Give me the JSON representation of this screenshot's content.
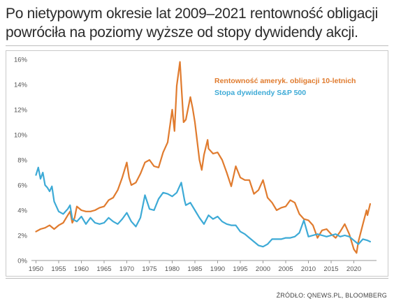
{
  "headline": "Po nietypowym okresie lat 2009–2021 rentowność obligacji powróciła na poziomy wyższe od stopy dywidendy akcji.",
  "source": "ŹRÓDŁO: QNEWS.PL, BLOOMBERG",
  "colors": {
    "bond": "#E07B2E",
    "dividend": "#3DAAD6"
  },
  "chart_data": {
    "type": "line",
    "title": "",
    "xlabel": "",
    "ylabel": "",
    "xlim": [
      1949,
      2025
    ],
    "ylim": [
      0,
      16
    ],
    "x_ticks": [
      "1950",
      "1955",
      "1960",
      "1965",
      "1970",
      "1975",
      "1980",
      "1985",
      "1990",
      "1995",
      "2000",
      "2005",
      "2010",
      "2015",
      "2020"
    ],
    "y_ticks": [
      "0%",
      "2%",
      "4%",
      "6%",
      "8%",
      "10%",
      "12%",
      "14%",
      "16%"
    ],
    "grid": false,
    "legend_position": "top-right",
    "series": [
      {
        "name": "Rentowność ameryk. obligacji 10-letnich",
        "color": "#E07B2E",
        "x": [
          1950,
          1951,
          1952,
          1953,
          1954,
          1955,
          1956,
          1957,
          1957.5,
          1958,
          1958.5,
          1959,
          1960,
          1961,
          1962,
          1963,
          1964,
          1965,
          1966,
          1967,
          1968,
          1969,
          1970,
          1970.5,
          1971,
          1972,
          1973,
          1974,
          1975,
          1976,
          1977,
          1978,
          1979,
          1980,
          1980.5,
          1981,
          1981.7,
          1982,
          1982.5,
          1983,
          1984,
          1984.5,
          1985,
          1986,
          1986.5,
          1987,
          1987.8,
          1988,
          1989,
          1990,
          1991,
          1992,
          1993,
          1994,
          1995,
          1996,
          1997,
          1998,
          1999,
          2000,
          2001,
          2002,
          2003,
          2004,
          2005,
          2006,
          2007,
          2008,
          2009,
          2010,
          2011,
          2012,
          2013,
          2014,
          2015,
          2016,
          2017,
          2018,
          2019,
          2020,
          2020.6,
          2021,
          2022,
          2022.8,
          2023,
          2023.6
        ],
        "values": [
          2.3,
          2.5,
          2.6,
          2.8,
          2.5,
          2.8,
          3.0,
          3.6,
          3.9,
          3.0,
          3.4,
          4.3,
          4.0,
          3.9,
          3.9,
          4.0,
          4.2,
          4.3,
          4.8,
          5.0,
          5.6,
          6.6,
          7.8,
          6.6,
          6.0,
          6.2,
          6.9,
          7.8,
          8.0,
          7.5,
          7.4,
          8.6,
          9.4,
          12.0,
          10.3,
          13.9,
          15.8,
          14.0,
          11.0,
          11.2,
          13.0,
          12.1,
          11.0,
          8.0,
          7.2,
          8.4,
          9.6,
          8.9,
          8.5,
          8.6,
          8.0,
          7.0,
          5.9,
          7.5,
          6.6,
          6.4,
          6.4,
          5.3,
          5.6,
          6.4,
          5.0,
          4.6,
          4.0,
          4.2,
          4.3,
          4.8,
          4.6,
          3.7,
          3.3,
          3.2,
          2.8,
          1.8,
          2.4,
          2.5,
          2.1,
          1.8,
          2.3,
          2.9,
          2.1,
          0.9,
          0.6,
          1.5,
          2.9,
          4.0,
          3.6,
          4.5
        ]
      },
      {
        "name": "Stopa dywidendy S&P 500",
        "color": "#3DAAD6",
        "x": [
          1950,
          1950.5,
          1951,
          1951.5,
          1952,
          1952.5,
          1953,
          1953.5,
          1954,
          1955,
          1956,
          1957,
          1957.5,
          1958,
          1959,
          1960,
          1961,
          1962,
          1963,
          1964,
          1965,
          1966,
          1967,
          1968,
          1969,
          1970,
          1971,
          1972,
          1973,
          1974,
          1975,
          1976,
          1977,
          1978,
          1979,
          1980,
          1981,
          1982,
          1982.7,
          1983,
          1984,
          1985,
          1986,
          1987,
          1988,
          1989,
          1990,
          1991,
          1992,
          1993,
          1994,
          1995,
          1996,
          1997,
          1998,
          1999,
          2000,
          2001,
          2002,
          2003,
          2004,
          2005,
          2006,
          2007,
          2008,
          2009,
          2010,
          2011,
          2012,
          2013,
          2014,
          2015,
          2016,
          2017,
          2018,
          2019,
          2020,
          2021,
          2022,
          2023,
          2023.6
        ],
        "values": [
          6.8,
          7.4,
          6.5,
          7.0,
          6.0,
          5.8,
          5.5,
          5.9,
          4.7,
          3.9,
          3.7,
          4.1,
          4.4,
          3.3,
          3.1,
          3.5,
          2.9,
          3.4,
          3.0,
          2.9,
          3.0,
          3.4,
          3.1,
          2.9,
          3.3,
          3.8,
          3.1,
          2.7,
          3.4,
          5.2,
          4.1,
          4.0,
          4.9,
          5.4,
          5.3,
          5.1,
          5.4,
          6.2,
          4.8,
          4.4,
          4.6,
          4.0,
          3.4,
          2.9,
          3.6,
          3.3,
          3.5,
          3.1,
          2.9,
          2.8,
          2.8,
          2.3,
          2.1,
          1.8,
          1.5,
          1.2,
          1.1,
          1.3,
          1.7,
          1.7,
          1.7,
          1.8,
          1.8,
          1.9,
          2.2,
          3.2,
          1.9,
          2.0,
          2.1,
          2.0,
          1.9,
          2.0,
          2.1,
          1.9,
          2.0,
          1.9,
          1.6,
          1.3,
          1.7,
          1.6,
          1.5
        ]
      }
    ]
  }
}
